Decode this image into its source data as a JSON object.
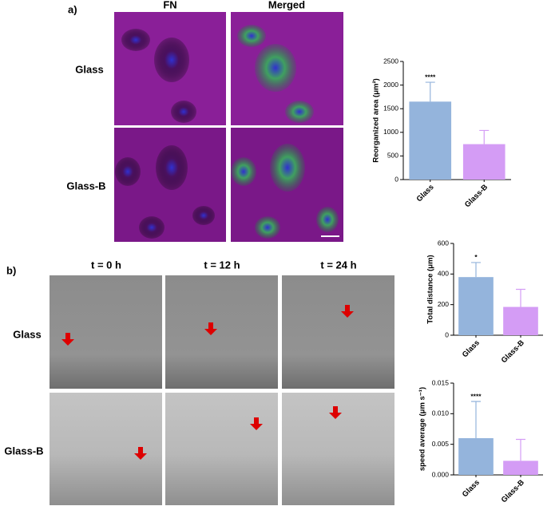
{
  "figure": {
    "panel_a": {
      "label": "a)",
      "columns": [
        "FN",
        "Merged"
      ],
      "rows": [
        "Glass",
        "Glass-B"
      ]
    },
    "panel_b": {
      "label": "b)",
      "columns": [
        "t = 0 h",
        "t = 12 h",
        "t = 24 h"
      ],
      "rows": [
        "Glass",
        "Glass-B"
      ]
    }
  },
  "chart_data": [
    {
      "type": "bar",
      "y_label": "Reorganized area (μm²)",
      "categories": [
        "Glass",
        "Glass-B"
      ],
      "values": [
        1650,
        750
      ],
      "errors": [
        410,
        290
      ],
      "colors": [
        "#94b4dc",
        "#d49cf5"
      ],
      "value_annotations": [
        "****",
        null
      ],
      "ylim": [
        0,
        2500
      ],
      "yticks": [
        0,
        500,
        1000,
        1500,
        2000,
        2500
      ]
    },
    {
      "type": "bar",
      "y_label": "Total distance (μm)",
      "categories": [
        "Glass",
        "Glass-B"
      ],
      "values": [
        380,
        185
      ],
      "errors": [
        95,
        115
      ],
      "colors": [
        "#94b4dc",
        "#d49cf5"
      ],
      "value_annotations": [
        "*",
        null
      ],
      "ylim": [
        0,
        600
      ],
      "yticks": [
        0,
        200,
        400,
        600
      ]
    },
    {
      "type": "bar",
      "y_label": "speed average (μm s⁻¹)",
      "categories": [
        "Glass",
        "Glass-B"
      ],
      "values": [
        0.006,
        0.0023
      ],
      "errors": [
        0.006,
        0.0035
      ],
      "colors": [
        "#94b4dc",
        "#d49cf5"
      ],
      "value_annotations": [
        "****",
        null
      ],
      "ylim": [
        0,
        0.015
      ],
      "yticks": [
        {
          "value": 0,
          "label": "0.000"
        },
        {
          "value": 0.005,
          "label": "0.005"
        },
        {
          "value": 0.01,
          "label": "0.010"
        },
        {
          "value": 0.015,
          "label": "0.015"
        }
      ]
    }
  ]
}
